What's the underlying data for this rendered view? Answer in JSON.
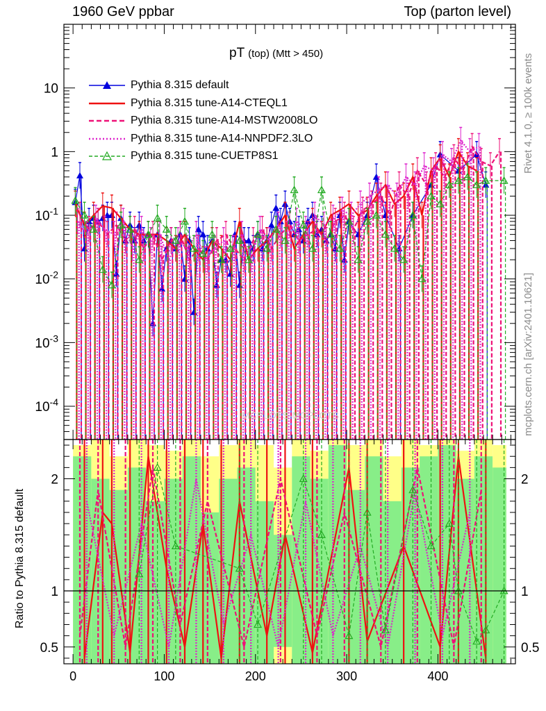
{
  "header": {
    "left": "1960 GeV ppbar",
    "right": "Top (parton level)"
  },
  "side_text": {
    "rivet": "Rivet 4.1.0, ≥ 100k events",
    "mcplots": "mcplots.cern.ch [arXiv:2401.10621]"
  },
  "watermark": "MCPLOTS-MCPLOTS",
  "colors": {
    "default": "#0000dd",
    "cteql1": "#ee1111",
    "mstw": "#ee1177",
    "nnpdf": "#dd22cc",
    "cuetp": "#22aa22",
    "band_yellow": "#ffff88",
    "band_green": "#88ee88"
  },
  "chart_data": {
    "type": "line",
    "title": "pT",
    "title_sub": "(top) (Mtt > 450)",
    "ylabel_ratio": "Ratio to Pythia 8.315 default",
    "xlim": [
      -10,
      485
    ],
    "ylim_main": [
      3e-05,
      100
    ],
    "ylim_ratio": [
      0.35,
      2.35
    ],
    "yscale_main": "log",
    "x_ticks": [
      "0",
      "100",
      "200",
      "300",
      "400"
    ],
    "y_ticks_main": [
      "10",
      "1",
      "10^-1",
      "10^-2",
      "10^-3",
      "10^-4"
    ],
    "y_ticks_ratio": [
      "2",
      "1",
      "0.5"
    ],
    "legend": [
      "Pythia 8.315 default",
      "Pythia 8.315 tune-A14-CTEQL1",
      "Pythia 8.315 tune-A14-MSTW2008LO",
      "Pythia 8.315 tune-A14-NNPDF2.3LO",
      "Pythia 8.315 tune-CUETP8S1"
    ],
    "bin_width": 5,
    "series": [
      {
        "name": "Pythia 8.315 default",
        "key": "default",
        "style": "solid-triangle",
        "x": [
          2.5,
          7.5,
          12.5,
          17.5,
          22.5,
          27.5,
          32.5,
          37.5,
          42.5,
          47.5,
          52.5,
          57.5,
          62.5,
          67.5,
          72.5,
          77.5,
          82.5,
          87.5,
          92.5,
          97.5,
          102.5,
          107.5,
          112.5,
          117.5,
          122.5,
          127.5,
          132.5,
          137.5,
          142.5,
          147.5,
          152.5,
          157.5,
          162.5,
          167.5,
          172.5,
          177.5,
          182.5,
          187.5,
          192.5,
          197.5,
          202.5,
          207.5,
          212.5,
          217.5,
          222.5,
          227.5,
          232.5,
          237.5,
          242.5,
          247.5,
          252.5,
          257.5,
          262.5,
          267.5,
          272.5,
          277.5,
          282.5,
          287.5,
          292.5,
          297.5,
          302.5,
          312.5,
          322.5,
          332.5,
          342.5,
          357.5,
          372.5,
          392.5,
          402.5,
          422.5,
          442.5,
          452.5
        ],
        "y": [
          0.16,
          0.42,
          0.03,
          0.08,
          0.09,
          0.08,
          0.09,
          0.1,
          0.1,
          0.012,
          0.09,
          0.04,
          0.07,
          0.04,
          0.07,
          0.04,
          0.05,
          0.002,
          0.05,
          0.007,
          0.03,
          0.04,
          0.03,
          0.05,
          0.01,
          0.04,
          0.003,
          0.06,
          0.05,
          0.03,
          0.04,
          0.008,
          0.02,
          0.02,
          0.012,
          0.05,
          0.008,
          0.04,
          0.04,
          0.03,
          0.05,
          0.03,
          0.04,
          0.07,
          0.13,
          0.08,
          0.15,
          0.08,
          0.05,
          0.06,
          0.04,
          0.08,
          0.1,
          0.05,
          0.06,
          0.04,
          0.05,
          0.03,
          0.1,
          0.02,
          0.08,
          0.05,
          0.1,
          0.4,
          0.1,
          0.03,
          0.1,
          0.3,
          0.9,
          0.5,
          0.9,
          0.3
        ]
      },
      {
        "name": "Pythia 8.315 tune-A14-CTEQL1",
        "key": "cteql1",
        "style": "solid",
        "x": [
          2.5,
          12.5,
          22.5,
          32.5,
          42.5,
          52.5,
          62.5,
          72.5,
          82.5,
          92.5,
          102.5,
          112.5,
          122.5,
          132.5,
          142.5,
          152.5,
          162.5,
          172.5,
          182.5,
          192.5,
          202.5,
          212.5,
          222.5,
          232.5,
          242.5,
          252.5,
          262.5,
          272.5,
          282.5,
          292.5,
          302.5,
          312.5,
          322.5,
          332.5,
          342.5,
          352.5,
          362.5,
          372.5,
          382.5,
          392.5,
          402.5,
          412.5,
          422.5,
          432.5,
          442.5
        ],
        "y": [
          0.15,
          0.07,
          0.1,
          0.14,
          0.13,
          0.09,
          0.06,
          0.05,
          0.05,
          0.05,
          0.04,
          0.03,
          0.05,
          0.03,
          0.02,
          0.04,
          0.03,
          0.02,
          0.08,
          0.02,
          0.03,
          0.04,
          0.06,
          0.1,
          0.03,
          0.05,
          0.08,
          0.05,
          0.1,
          0.12,
          0.15,
          0.1,
          0.12,
          0.2,
          0.3,
          0.15,
          0.2,
          0.4,
          0.1,
          0.5,
          0.8,
          0.4,
          1.0,
          0.6,
          0.5
        ]
      },
      {
        "name": "Pythia 8.315 tune-A14-MSTW2008LO",
        "key": "mstw",
        "style": "dashed",
        "x": [
          7.5,
          17.5,
          27.5,
          37.5,
          47.5,
          57.5,
          67.5,
          77.5,
          87.5,
          97.5,
          107.5,
          117.5,
          127.5,
          137.5,
          147.5,
          157.5,
          167.5,
          177.5,
          187.5,
          197.5,
          207.5,
          217.5,
          227.5,
          237.5,
          247.5,
          257.5,
          267.5,
          277.5,
          287.5,
          297.5,
          307.5,
          317.5,
          327.5,
          337.5,
          347.5,
          357.5,
          367.5,
          377.5,
          387.5,
          397.5,
          407.5,
          417.5,
          427.5,
          437.5,
          447.5,
          457.5,
          467.5
        ],
        "y": [
          0.1,
          0.06,
          0.08,
          0.05,
          0.07,
          0.04,
          0.06,
          0.03,
          0.05,
          0.02,
          0.04,
          0.05,
          0.02,
          0.03,
          0.02,
          0.04,
          0.05,
          0.03,
          0.02,
          0.04,
          0.06,
          0.03,
          0.05,
          0.07,
          0.04,
          0.05,
          0.06,
          0.04,
          0.08,
          0.1,
          0.06,
          0.12,
          0.15,
          0.2,
          0.1,
          0.3,
          0.2,
          0.5,
          0.3,
          0.6,
          0.4,
          0.8,
          0.5,
          1.2,
          0.7,
          0.6,
          1.0
        ]
      },
      {
        "name": "Pythia 8.315 tune-A14-NNPDF2.3LO",
        "key": "nnpdf",
        "style": "dotted",
        "x": [
          5,
          15,
          25,
          35,
          45,
          55,
          65,
          75,
          85,
          95,
          105,
          115,
          125,
          135,
          145,
          155,
          165,
          175,
          185,
          195,
          205,
          215,
          225,
          235,
          245,
          255,
          265,
          275,
          285,
          295,
          305,
          315,
          325,
          335,
          345,
          355,
          365,
          375,
          385,
          395,
          405,
          415,
          425,
          435,
          445
        ],
        "y": [
          0.08,
          0.05,
          0.09,
          0.06,
          0.05,
          0.08,
          0.03,
          0.06,
          0.04,
          0.05,
          0.02,
          0.04,
          0.03,
          0.05,
          0.02,
          0.03,
          0.04,
          0.03,
          0.05,
          0.02,
          0.06,
          0.04,
          0.07,
          0.05,
          0.08,
          0.06,
          0.1,
          0.07,
          0.09,
          0.12,
          0.1,
          0.15,
          0.2,
          0.25,
          0.3,
          0.2,
          0.4,
          0.3,
          0.6,
          0.5,
          0.9,
          0.7,
          1.5,
          1.0,
          1.2
        ]
      },
      {
        "name": "Pythia 8.315 tune-CUETP8S1",
        "key": "cuetp",
        "style": "dashed-open-triangle",
        "x": [
          2.5,
          12.5,
          22.5,
          32.5,
          42.5,
          52.5,
          62.5,
          72.5,
          82.5,
          92.5,
          102.5,
          112.5,
          122.5,
          132.5,
          142.5,
          152.5,
          162.5,
          172.5,
          182.5,
          192.5,
          202.5,
          212.5,
          222.5,
          232.5,
          242.5,
          252.5,
          262.5,
          272.5,
          282.5,
          292.5,
          302.5,
          312.5,
          322.5,
          332.5,
          342.5,
          352.5,
          362.5,
          372.5,
          382.5,
          392.5,
          402.5,
          412.5,
          422.5,
          432.5,
          442.5,
          452.5,
          472.5
        ],
        "y": [
          0.17,
          0.1,
          0.06,
          0.014,
          0.008,
          0.07,
          0.06,
          0.02,
          0.05,
          0.09,
          0.06,
          0.04,
          0.08,
          0.03,
          0.025,
          0.05,
          0.02,
          0.03,
          0.04,
          0.02,
          0.05,
          0.03,
          0.06,
          0.04,
          0.25,
          0.07,
          0.03,
          0.25,
          0.05,
          0.03,
          0.08,
          0.02,
          0.08,
          0.1,
          0.05,
          0.03,
          0.02,
          0.1,
          0.01,
          0.2,
          0.15,
          0.3,
          0.35,
          0.4,
          0.3,
          0.35,
          0.35
        ]
      }
    ],
    "ratio_series": [
      {
        "key": "cteql1",
        "x": [
          12.5,
          32.5,
          42.5,
          62.5,
          82.5,
          102.5,
          122.5,
          142.5,
          162.5,
          182.5,
          212.5,
          232.5,
          262.5,
          302.5,
          322.5,
          362.5,
          402.5,
          422.5,
          452.5
        ],
        "y": [
          0.4,
          1.7,
          1.6,
          0.45,
          2.2,
          1.2,
          0.5,
          1.6,
          0.4,
          1.8,
          0.6,
          1.5,
          0.45,
          2.1,
          0.55,
          1.4,
          0.5,
          2.2,
          0.4
        ]
      },
      {
        "key": "mstw",
        "x": [
          7.5,
          27.5,
          57.5,
          87.5,
          117.5,
          147.5,
          187.5,
          227.5,
          267.5,
          297.5,
          337.5,
          377.5,
          417.5,
          447.5
        ],
        "y": [
          0.6,
          1.9,
          0.5,
          2.1,
          0.7,
          1.8,
          0.5,
          2.0,
          0.6,
          1.7,
          0.5,
          2.1,
          0.5,
          1.9
        ]
      },
      {
        "key": "nnpdf",
        "x": [
          15,
          45,
          75,
          105,
          135,
          165,
          195,
          225,
          255,
          285,
          315,
          345,
          375,
          405,
          435
        ],
        "y": [
          1.8,
          0.6,
          1.6,
          0.5,
          2.0,
          0.7,
          1.5,
          0.5,
          1.8,
          0.6,
          1.4,
          0.5,
          1.9,
          0.6,
          1.7
        ]
      },
      {
        "key": "cuetp",
        "x": [
          72.5,
          92.5,
          112.5,
          182.5,
          202.5,
          252.5,
          272.5,
          302.5,
          322.5,
          342.5,
          372.5,
          392.5,
          412.5,
          422.5,
          442.5,
          452.5,
          472.5
        ],
        "y": [
          1.15,
          2.1,
          1.4,
          1.2,
          0.7,
          2.0,
          1.5,
          0.6,
          1.7,
          0.65,
          1.9,
          1.4,
          1.6,
          1.0,
          0.55,
          0.65,
          1.0
        ]
      }
    ],
    "band_rows": [
      {
        "x": [
          0,
          20,
          40,
          60,
          80,
          100,
          120,
          140,
          160,
          180,
          200,
          220,
          240,
          260,
          280,
          300,
          320,
          340,
          360,
          380,
          400,
          420,
          440,
          460,
          475
        ],
        "yellow_hi": [
          2.3,
          2.35,
          2.2,
          2.35,
          2.3,
          2.25,
          2.35,
          2.2,
          2.3,
          2.35,
          2.3,
          2.1,
          2.35,
          2.25,
          2.35,
          2.3,
          2.35,
          2.2,
          2.35,
          2.3,
          2.35,
          2.25,
          2.35,
          2.3,
          2.2
        ],
        "green_hi": [
          2.2,
          2.0,
          1.9,
          2.1,
          1.8,
          2.0,
          2.2,
          1.7,
          2.0,
          2.1,
          1.8,
          1.5,
          2.2,
          2.0,
          2.3,
          1.9,
          2.2,
          1.8,
          2.1,
          2.2,
          2.3,
          2.0,
          2.2,
          2.1,
          2.0
        ]
      }
    ]
  }
}
